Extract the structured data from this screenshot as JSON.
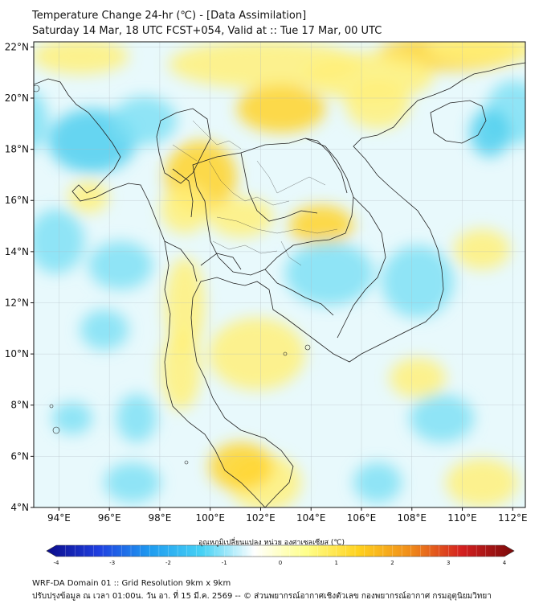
{
  "title": "Temperature Change 24-hr (℃) - [Data Assimilation]",
  "subtitle": "Saturday 14 Mar, 18 UTC FCST+054, Valid at :: Tue 17 Mar, 00 UTC",
  "map": {
    "lon_range": [
      93,
      112.5
    ],
    "lat_range": [
      4,
      22.2
    ],
    "lat_ticks": [
      "22°N",
      "20°N",
      "18°N",
      "16°N",
      "14°N",
      "12°N",
      "10°N",
      "8°N",
      "6°N",
      "4°N"
    ],
    "lon_ticks": [
      "94°E",
      "96°E",
      "98°E",
      "100°E",
      "102°E",
      "104°E",
      "106°E",
      "108°E",
      "110°E",
      "112°E"
    ],
    "lat_values": [
      22,
      20,
      18,
      16,
      14,
      12,
      10,
      8,
      6,
      4
    ],
    "lon_values": [
      94,
      96,
      98,
      100,
      102,
      104,
      106,
      108,
      110,
      112
    ],
    "background_color": "#e8f9fc",
    "warm_color": "#fff07a",
    "strong_warm_color": "#ffd42a",
    "cool_color": "#7fe0f5",
    "strong_cool_color": "#4fcfee"
  },
  "colorbar": {
    "title": "อุณหภูมิเปลี่ยนแปลง หน่วย องศาเซลเซียส (℃)",
    "min": -4,
    "max": 4,
    "tick_labels": [
      "-4",
      "-3",
      "-2",
      "-1",
      "0",
      "1",
      "2",
      "3",
      "4"
    ],
    "tick_values": [
      -4,
      -3,
      -2,
      -1,
      0,
      1,
      2,
      3,
      4
    ],
    "color_stops": [
      "#0b0b8a",
      "#1f3fe0",
      "#1f9cf0",
      "#47d2f5",
      "#ffffff",
      "#ffff8a",
      "#ffd21f",
      "#f08c1a",
      "#d42020",
      "#7a0a0a"
    ]
  },
  "footer": {
    "line1": "WRF-DA Domain 01 :: Grid Resolution 9km x 9km",
    "line2": "ปรับปรุงข้อมูล ณ เวลา 01:00น. วัน อา. ที่ 15 มี.ค. 2569 -- © ส่วนพยากรณ์อากาศเชิงตัวเลข กองพยากรณ์อากาศ กรมอุตุนิยมวิทยา"
  }
}
